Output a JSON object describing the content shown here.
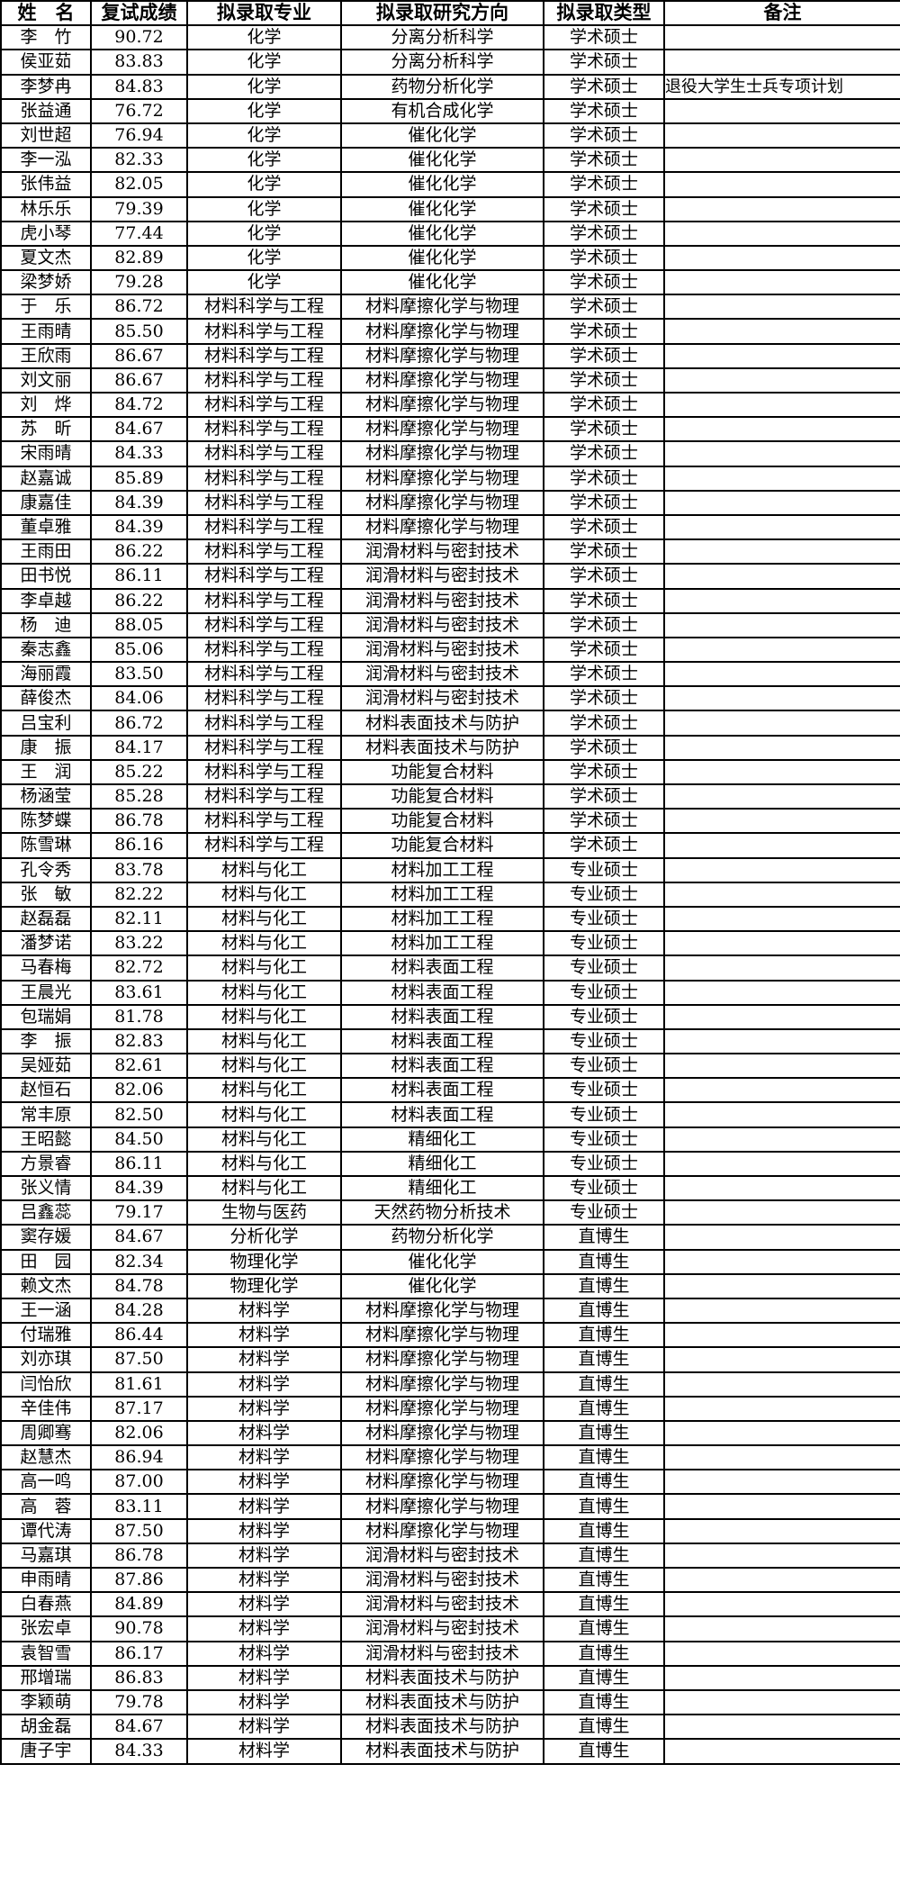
{
  "headers": [
    "姓　名",
    "复试成绩",
    "拟录取专业",
    "拟录取研究方向",
    "拟录取类型",
    "备注"
  ],
  "rows": [
    [
      "李　竹",
      "90.72",
      "化学",
      "分离分析科学",
      "学术硕士",
      ""
    ],
    [
      "侯亚茹",
      "83.83",
      "化学",
      "分离分析科学",
      "学术硕士",
      ""
    ],
    [
      "李梦冉",
      "84.83",
      "化学",
      "药物分析化学",
      "学术硕士",
      "退役大学生士兵专项计划"
    ],
    [
      "张益通",
      "76.72",
      "化学",
      "有机合成化学",
      "学术硕士",
      ""
    ],
    [
      "刘世超",
      "76.94",
      "化学",
      "催化化学",
      "学术硕士",
      ""
    ],
    [
      "李一泓",
      "82.33",
      "化学",
      "催化化学",
      "学术硕士",
      ""
    ],
    [
      "张伟益",
      "82.05",
      "化学",
      "催化化学",
      "学术硕士",
      ""
    ],
    [
      "林乐乐",
      "79.39",
      "化学",
      "催化化学",
      "学术硕士",
      ""
    ],
    [
      "虎小琴",
      "77.44",
      "化学",
      "催化化学",
      "学术硕士",
      ""
    ],
    [
      "夏文杰",
      "82.89",
      "化学",
      "催化化学",
      "学术硕士",
      ""
    ],
    [
      "梁梦娇",
      "79.28",
      "化学",
      "催化化学",
      "学术硕士",
      ""
    ],
    [
      "于　乐",
      "86.72",
      "材料科学与工程",
      "材料摩擦化学与物理",
      "学术硕士",
      ""
    ],
    [
      "王雨晴",
      "85.50",
      "材料科学与工程",
      "材料摩擦化学与物理",
      "学术硕士",
      ""
    ],
    [
      "王欣雨",
      "86.67",
      "材料科学与工程",
      "材料摩擦化学与物理",
      "学术硕士",
      ""
    ],
    [
      "刘文丽",
      "86.67",
      "材料科学与工程",
      "材料摩擦化学与物理",
      "学术硕士",
      ""
    ],
    [
      "刘　烨",
      "84.72",
      "材料科学与工程",
      "材料摩擦化学与物理",
      "学术硕士",
      ""
    ],
    [
      "苏　昕",
      "84.67",
      "材料科学与工程",
      "材料摩擦化学与物理",
      "学术硕士",
      ""
    ],
    [
      "宋雨晴",
      "84.33",
      "材料科学与工程",
      "材料摩擦化学与物理",
      "学术硕士",
      ""
    ],
    [
      "赵嘉诚",
      "85.89",
      "材料科学与工程",
      "材料摩擦化学与物理",
      "学术硕士",
      ""
    ],
    [
      "康嘉佳",
      "84.39",
      "材料科学与工程",
      "材料摩擦化学与物理",
      "学术硕士",
      ""
    ],
    [
      "董卓雅",
      "84.39",
      "材料科学与工程",
      "材料摩擦化学与物理",
      "学术硕士",
      ""
    ],
    [
      "王雨田",
      "86.22",
      "材料科学与工程",
      "润滑材料与密封技术",
      "学术硕士",
      ""
    ],
    [
      "田书悦",
      "86.11",
      "材料科学与工程",
      "润滑材料与密封技术",
      "学术硕士",
      ""
    ],
    [
      "李卓越",
      "86.22",
      "材料科学与工程",
      "润滑材料与密封技术",
      "学术硕士",
      ""
    ],
    [
      "杨　迪",
      "88.05",
      "材料科学与工程",
      "润滑材料与密封技术",
      "学术硕士",
      ""
    ],
    [
      "秦志鑫",
      "85.06",
      "材料科学与工程",
      "润滑材料与密封技术",
      "学术硕士",
      ""
    ],
    [
      "海丽霞",
      "83.50",
      "材料科学与工程",
      "润滑材料与密封技术",
      "学术硕士",
      ""
    ],
    [
      "薛俊杰",
      "84.06",
      "材料科学与工程",
      "润滑材料与密封技术",
      "学术硕士",
      ""
    ],
    [
      "吕宝利",
      "86.72",
      "材料科学与工程",
      "材料表面技术与防护",
      "学术硕士",
      ""
    ],
    [
      "康　振",
      "84.17",
      "材料科学与工程",
      "材料表面技术与防护",
      "学术硕士",
      ""
    ],
    [
      "王　润",
      "85.22",
      "材料科学与工程",
      "功能复合材料",
      "学术硕士",
      ""
    ],
    [
      "杨涵莹",
      "85.28",
      "材料科学与工程",
      "功能复合材料",
      "学术硕士",
      ""
    ],
    [
      "陈梦蝶",
      "86.78",
      "材料科学与工程",
      "功能复合材料",
      "学术硕士",
      ""
    ],
    [
      "陈雪琳",
      "86.16",
      "材料科学与工程",
      "功能复合材料",
      "学术硕士",
      ""
    ],
    [
      "孔令秀",
      "83.78",
      "材料与化工",
      "材料加工工程",
      "专业硕士",
      ""
    ],
    [
      "张　敏",
      "82.22",
      "材料与化工",
      "材料加工工程",
      "专业硕士",
      ""
    ],
    [
      "赵磊磊",
      "82.11",
      "材料与化工",
      "材料加工工程",
      "专业硕士",
      ""
    ],
    [
      "潘梦诺",
      "83.22",
      "材料与化工",
      "材料加工工程",
      "专业硕士",
      ""
    ],
    [
      "马春梅",
      "82.72",
      "材料与化工",
      "材料表面工程",
      "专业硕士",
      ""
    ],
    [
      "王晨光",
      "83.61",
      "材料与化工",
      "材料表面工程",
      "专业硕士",
      ""
    ],
    [
      "包瑞娟",
      "81.78",
      "材料与化工",
      "材料表面工程",
      "专业硕士",
      ""
    ],
    [
      "李　振",
      "82.83",
      "材料与化工",
      "材料表面工程",
      "专业硕士",
      ""
    ],
    [
      "吴娅茹",
      "82.61",
      "材料与化工",
      "材料表面工程",
      "专业硕士",
      ""
    ],
    [
      "赵恒石",
      "82.06",
      "材料与化工",
      "材料表面工程",
      "专业硕士",
      ""
    ],
    [
      "常丰原",
      "82.50",
      "材料与化工",
      "材料表面工程",
      "专业硕士",
      ""
    ],
    [
      "王昭懿",
      "84.50",
      "材料与化工",
      "精细化工",
      "专业硕士",
      ""
    ],
    [
      "方景睿",
      "86.11",
      "材料与化工",
      "精细化工",
      "专业硕士",
      ""
    ],
    [
      "张义情",
      "84.39",
      "材料与化工",
      "精细化工",
      "专业硕士",
      ""
    ],
    [
      "吕鑫蕊",
      "79.17",
      "生物与医药",
      "天然药物分析技术",
      "专业硕士",
      ""
    ],
    [
      "窦存媛",
      "84.67",
      "分析化学",
      "药物分析化学",
      "直博生",
      ""
    ],
    [
      "田　园",
      "82.34",
      "物理化学",
      "催化化学",
      "直博生",
      ""
    ],
    [
      "赖文杰",
      "84.78",
      "物理化学",
      "催化化学",
      "直博生",
      ""
    ],
    [
      "王一涵",
      "84.28",
      "材料学",
      "材料摩擦化学与物理",
      "直博生",
      ""
    ],
    [
      "付瑞雅",
      "86.44",
      "材料学",
      "材料摩擦化学与物理",
      "直博生",
      ""
    ],
    [
      "刘亦琪",
      "87.50",
      "材料学",
      "材料摩擦化学与物理",
      "直博生",
      ""
    ],
    [
      "闫怡欣",
      "81.61",
      "材料学",
      "材料摩擦化学与物理",
      "直博生",
      ""
    ],
    [
      "辛佳伟",
      "87.17",
      "材料学",
      "材料摩擦化学与物理",
      "直博生",
      ""
    ],
    [
      "周卿骞",
      "82.06",
      "材料学",
      "材料摩擦化学与物理",
      "直博生",
      ""
    ],
    [
      "赵慧杰",
      "86.94",
      "材料学",
      "材料摩擦化学与物理",
      "直博生",
      ""
    ],
    [
      "高一鸣",
      "87.00",
      "材料学",
      "材料摩擦化学与物理",
      "直博生",
      ""
    ],
    [
      "高　蓉",
      "83.11",
      "材料学",
      "材料摩擦化学与物理",
      "直博生",
      ""
    ],
    [
      "谭代涛",
      "87.50",
      "材料学",
      "材料摩擦化学与物理",
      "直博生",
      ""
    ],
    [
      "马嘉琪",
      "86.78",
      "材料学",
      "润滑材料与密封技术",
      "直博生",
      ""
    ],
    [
      "申雨晴",
      "87.86",
      "材料学",
      "润滑材料与密封技术",
      "直博生",
      ""
    ],
    [
      "白春燕",
      "84.89",
      "材料学",
      "润滑材料与密封技术",
      "直博生",
      ""
    ],
    [
      "张宏卓",
      "90.78",
      "材料学",
      "润滑材料与密封技术",
      "直博生",
      ""
    ],
    [
      "袁智雪",
      "86.17",
      "材料学",
      "润滑材料与密封技术",
      "直博生",
      ""
    ],
    [
      "邢增瑞",
      "86.83",
      "材料学",
      "材料表面技术与防护",
      "直博生",
      ""
    ],
    [
      "李颖萌",
      "79.78",
      "材料学",
      "材料表面技术与防护",
      "直博生",
      ""
    ],
    [
      "胡金磊",
      "84.67",
      "材料学",
      "材料表面技术与防护",
      "直博生",
      ""
    ],
    [
      "唐子宇",
      "84.33",
      "材料学",
      "材料表面技术与防护",
      "直博生",
      ""
    ]
  ]
}
